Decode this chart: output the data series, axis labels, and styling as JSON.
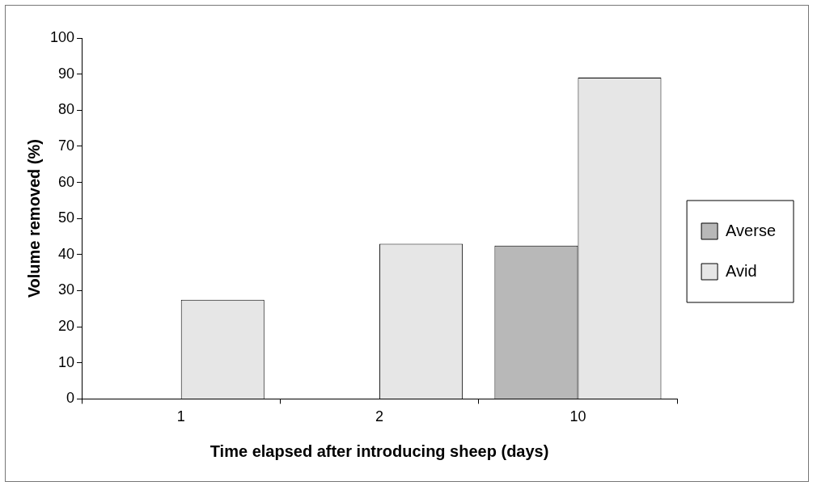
{
  "chart_data": {
    "type": "bar",
    "xlabel": "Time elapsed after introducing sheep (days)",
    "ylabel": "Volume removed (%)",
    "categories": [
      "1",
      "2",
      "10"
    ],
    "series": [
      {
        "name": "Averse",
        "color": "#b8b8b8",
        "values": [
          0,
          0,
          42.5
        ]
      },
      {
        "name": "Avid",
        "color": "#e6e6e6",
        "values": [
          27.5,
          43,
          89
        ]
      }
    ],
    "ylim": [
      0,
      100
    ],
    "yticks": [
      0,
      10,
      20,
      30,
      40,
      50,
      60,
      70,
      80,
      90,
      100
    ],
    "grid": false,
    "legend": "right"
  }
}
